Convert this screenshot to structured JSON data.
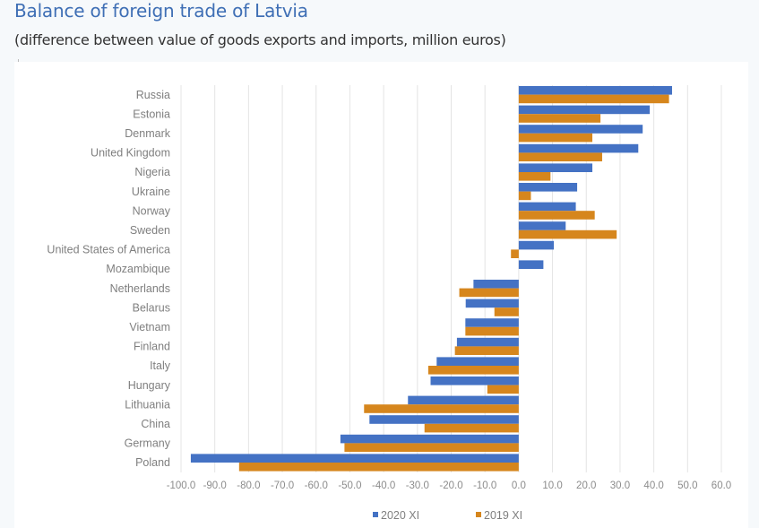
{
  "page": {
    "title": "Balance of foreign trade of Latvia",
    "subtitle": "(difference between value of goods exports and imports, million euros)"
  },
  "colors": {
    "series_2020": "#4472c4",
    "series_2019": "#d6861d",
    "grid": "#e4e4e4",
    "title": "#3f6fb5"
  },
  "chart_data": {
    "type": "bar",
    "orientation": "horizontal",
    "title": "Balance of foreign trade of Latvia",
    "subtitle": "(difference between value of goods exports and imports, million euros)",
    "xlabel": "",
    "ylabel": "",
    "xlim": [
      -100,
      60
    ],
    "x_ticks": [
      -100,
      -90,
      -80,
      -70,
      -60,
      -50,
      -40,
      -30,
      -20,
      -10,
      0,
      10,
      20,
      30,
      40,
      50,
      60
    ],
    "x_tick_labels": [
      "-100.0",
      "-90.0",
      "-80.0",
      "-70.0",
      "-60.0",
      "-50.0",
      "-40.0",
      "-30.0",
      "-20.0",
      "-10.0",
      "0.0",
      "10.0",
      "20.0",
      "30.0",
      "40.0",
      "50.0",
      "60.0"
    ],
    "grid": "vertical",
    "legend_position": "bottom",
    "categories": [
      "Russia",
      "Estonia",
      "Denmark",
      "United Kingdom",
      "Nigeria",
      "Ukraine",
      "Norway",
      "Sweden",
      "United States of America",
      "Mozambique",
      "Netherlands",
      "Belarus",
      "Vietnam",
      "Finland",
      "Italy",
      "Hungary",
      "Lithuania",
      "China",
      "Germany",
      "Poland"
    ],
    "series": [
      {
        "name": "2020 XI",
        "color": "#4472c4",
        "values": [
          45.4,
          38.8,
          36.7,
          35.4,
          21.8,
          17.3,
          16.9,
          13.9,
          10.4,
          7.3,
          -13.4,
          -15.7,
          -15.8,
          -18.3,
          -24.3,
          -26.1,
          -32.8,
          -44.2,
          -52.8,
          -97.1
        ]
      },
      {
        "name": "2019 XI",
        "color": "#d6861d",
        "values": [
          44.5,
          24.2,
          21.8,
          24.7,
          9.4,
          3.6,
          22.5,
          29.0,
          -2.3,
          0.0,
          -17.6,
          -7.2,
          -15.8,
          -18.9,
          -26.8,
          -9.3,
          -45.8,
          -27.9,
          -51.6,
          -82.8
        ]
      }
    ]
  }
}
